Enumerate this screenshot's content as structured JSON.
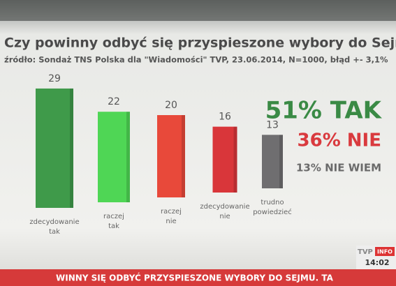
{
  "chart_data": {
    "type": "bar",
    "title": "Czy powinny odbyć się przyspieszone wybory do Sejmu?",
    "subtitle": "źródło: Sondaż TNS Polska dla \"Wiadomości\" TVP, 23.06.2014, N=1000, błąd +- 3,1%",
    "categories": [
      "zdecydowanie tak",
      "raczej tak",
      "raczej nie",
      "zdecydowanie nie",
      "trudno powiedzieć"
    ],
    "values": [
      29,
      22,
      20,
      16,
      13
    ],
    "colors": [
      "#3f9a4a",
      "#4fd655",
      "#e8493a",
      "#d9363a",
      "#6f6e70"
    ],
    "annotations": [
      {
        "text": "51% TAK",
        "color": "#3a8a45"
      },
      {
        "text": "36% NIE",
        "color": "#d93a3e"
      },
      {
        "text": "13% NIE WIEM",
        "color": "#6a6a6a"
      }
    ]
  },
  "ticker": {
    "logo": "TVP",
    "logo_badge": "INFO",
    "time": "14:02",
    "text": "WINNY SIĘ ODBYĆ PRZYSPIESZONE WYBORY DO SEJMU. TA"
  }
}
